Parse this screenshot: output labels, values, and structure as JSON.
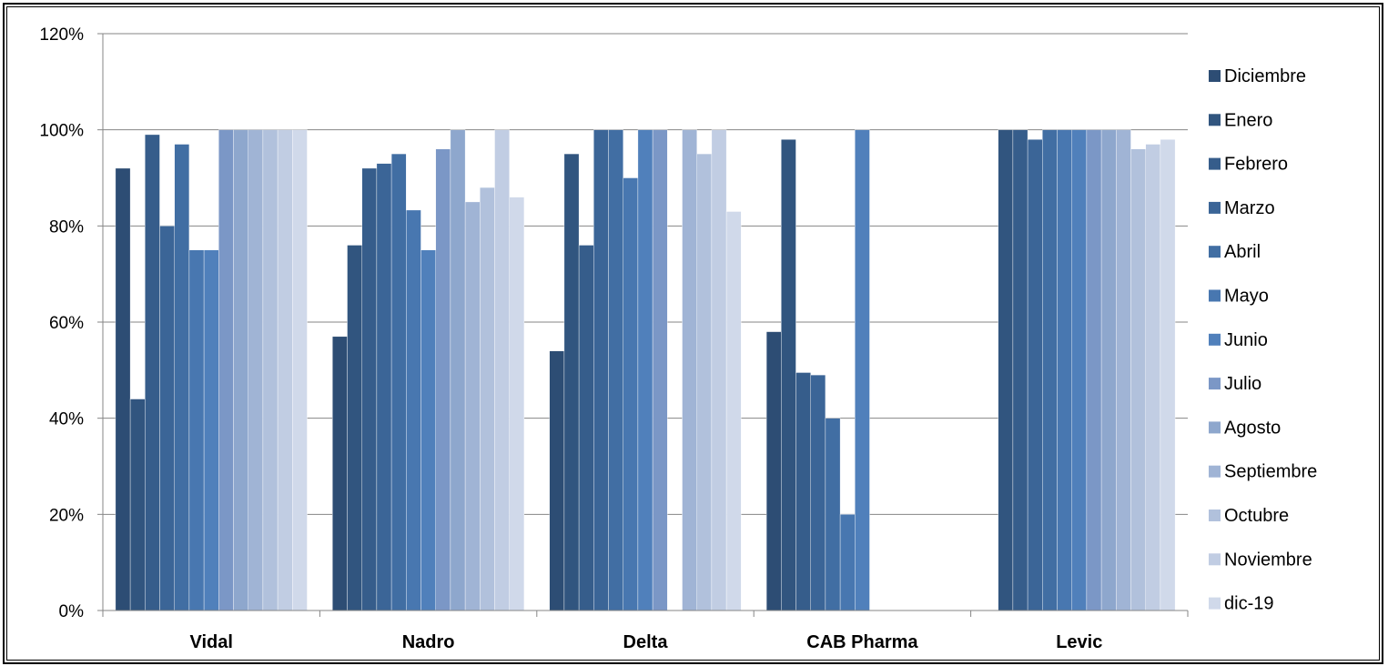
{
  "chart_data": {
    "type": "bar",
    "categories": [
      "Vidal",
      "Nadro",
      "Delta",
      "CAB Pharma",
      "Levic"
    ],
    "ylim": [
      0,
      120
    ],
    "yticks": [
      "0%",
      "20%",
      "40%",
      "60%",
      "80%",
      "100%",
      "120%"
    ],
    "grid": true,
    "legend_position": "right",
    "series": [
      {
        "name": "Diciembre",
        "color": "#2d4d74",
        "values": [
          92,
          57,
          54,
          58,
          null
        ]
      },
      {
        "name": "Enero",
        "color": "#31557f",
        "values": [
          44,
          76,
          95,
          98,
          100
        ]
      },
      {
        "name": "Febrero",
        "color": "#365d8b",
        "values": [
          99,
          92,
          76,
          49.5,
          100
        ]
      },
      {
        "name": "Marzo",
        "color": "#3b6597",
        "values": [
          80,
          93,
          100,
          49,
          98
        ]
      },
      {
        "name": "Abril",
        "color": "#416ea3",
        "values": [
          97,
          95,
          100,
          40,
          100
        ]
      },
      {
        "name": "Mayo",
        "color": "#4877b0",
        "values": [
          75,
          83.3,
          90,
          20,
          100
        ]
      },
      {
        "name": "Junio",
        "color": "#5080bb",
        "values": [
          75,
          75,
          100,
          100,
          100
        ]
      },
      {
        "name": "Julio",
        "color": "#7b97c6",
        "values": [
          100,
          96,
          100,
          null,
          100
        ]
      },
      {
        "name": "Agosto",
        "color": "#8ea7cd",
        "values": [
          100,
          100,
          null,
          null,
          100
        ]
      },
      {
        "name": "Septiembre",
        "color": "#a0b4d5",
        "values": [
          100,
          85,
          100,
          null,
          100
        ]
      },
      {
        "name": "Octubre",
        "color": "#b1c1dc",
        "values": [
          100,
          88,
          95,
          null,
          96
        ]
      },
      {
        "name": "Noviembre",
        "color": "#c1cde3",
        "values": [
          100,
          100,
          100,
          null,
          97
        ]
      },
      {
        "name": "dic-19",
        "color": "#d0d9ea",
        "values": [
          100,
          86,
          83,
          null,
          98
        ]
      }
    ]
  }
}
